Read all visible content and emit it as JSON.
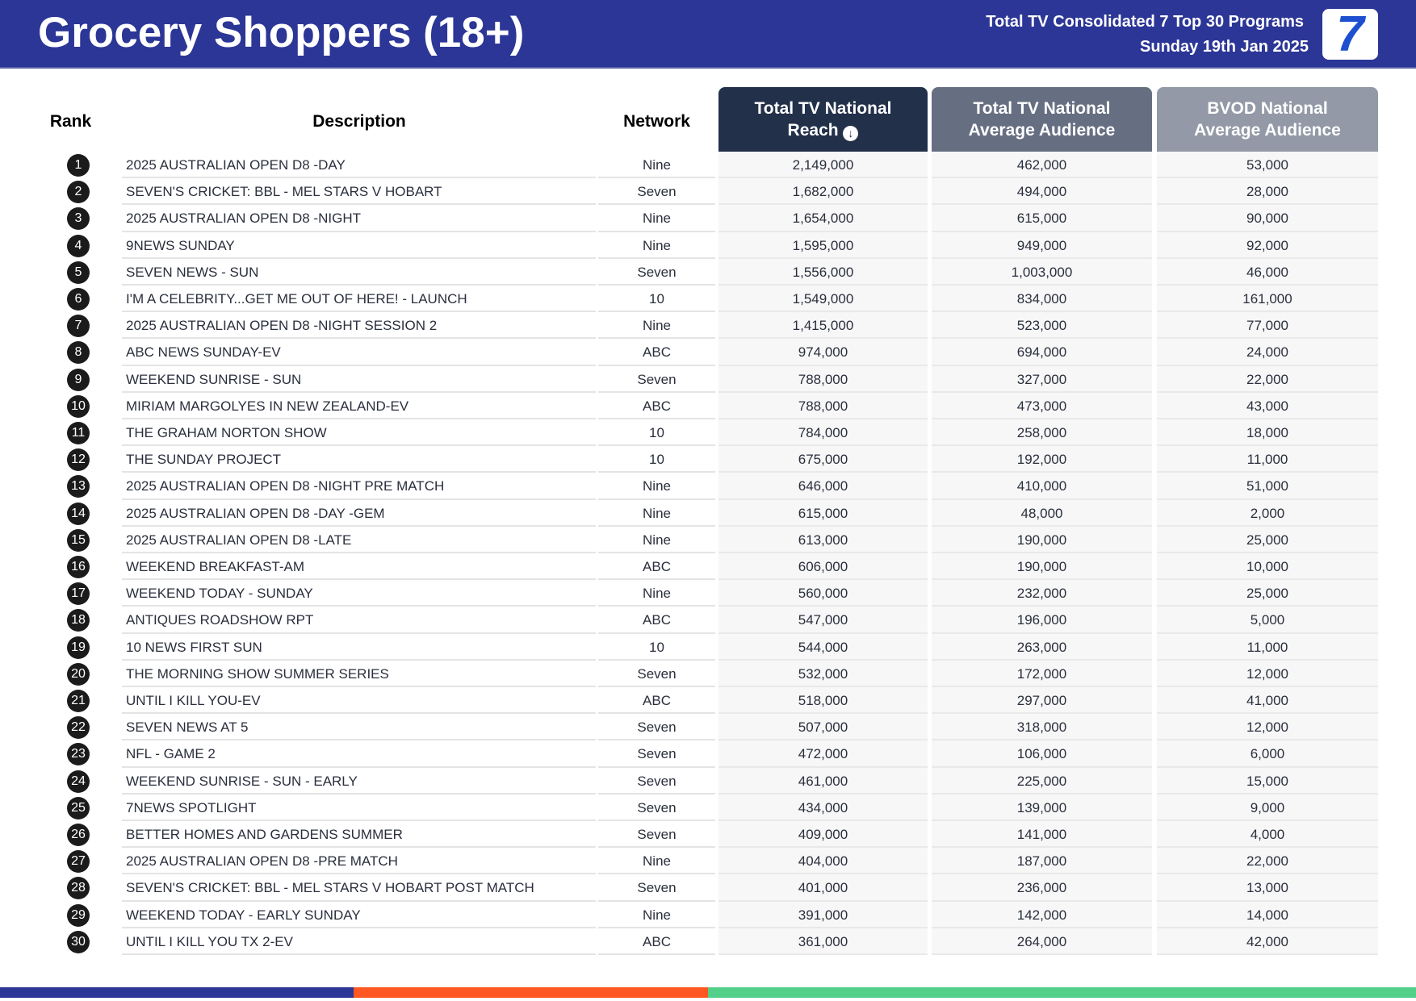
{
  "header": {
    "title": "Grocery Shoppers (18+)",
    "subtitle": "Total TV Consolidated 7 Top 30 Programs",
    "date": "Sunday 19th Jan 2025",
    "logo": "7"
  },
  "columns": {
    "rank": "Rank",
    "description": "Description",
    "network": "Network",
    "reach_l1": "Total TV National",
    "reach_l2": "Reach",
    "avg_l1": "Total TV National",
    "avg_l2": "Average Audience",
    "bvod_l1": "BVOD National",
    "bvod_l2": "Average Audience",
    "sort_icon": "arrow-down-circle-icon"
  },
  "colors": {
    "header": "#2c3696",
    "col_reach": "#22304a",
    "col_avg": "#666f82",
    "col_bvod": "#9399a6",
    "bar": [
      "#2c3696",
      "#ff5722",
      "#52d08a"
    ]
  },
  "rows": [
    {
      "rank": "1",
      "desc": "2025 AUSTRALIAN OPEN D8 -DAY",
      "net": "Nine",
      "reach": "2,149,000",
      "avg": "462,000",
      "bvod": "53,000"
    },
    {
      "rank": "2",
      "desc": "SEVEN'S CRICKET: BBL - MEL STARS V HOBART",
      "net": "Seven",
      "reach": "1,682,000",
      "avg": "494,000",
      "bvod": "28,000"
    },
    {
      "rank": "3",
      "desc": "2025 AUSTRALIAN OPEN D8 -NIGHT",
      "net": "Nine",
      "reach": "1,654,000",
      "avg": "615,000",
      "bvod": "90,000"
    },
    {
      "rank": "4",
      "desc": "9NEWS SUNDAY",
      "net": "Nine",
      "reach": "1,595,000",
      "avg": "949,000",
      "bvod": "92,000"
    },
    {
      "rank": "5",
      "desc": "SEVEN NEWS - SUN",
      "net": "Seven",
      "reach": "1,556,000",
      "avg": "1,003,000",
      "bvod": "46,000"
    },
    {
      "rank": "6",
      "desc": "I'M A CELEBRITY...GET ME OUT OF HERE! - LAUNCH",
      "net": "10",
      "reach": "1,549,000",
      "avg": "834,000",
      "bvod": "161,000"
    },
    {
      "rank": "7",
      "desc": "2025 AUSTRALIAN OPEN D8 -NIGHT SESSION 2",
      "net": "Nine",
      "reach": "1,415,000",
      "avg": "523,000",
      "bvod": "77,000"
    },
    {
      "rank": "8",
      "desc": "ABC NEWS SUNDAY-EV",
      "net": "ABC",
      "reach": "974,000",
      "avg": "694,000",
      "bvod": "24,000"
    },
    {
      "rank": "9",
      "desc": "WEEKEND SUNRISE - SUN",
      "net": "Seven",
      "reach": "788,000",
      "avg": "327,000",
      "bvod": "22,000"
    },
    {
      "rank": "10",
      "desc": "MIRIAM MARGOLYES IN NEW ZEALAND-EV",
      "net": "ABC",
      "reach": "788,000",
      "avg": "473,000",
      "bvod": "43,000"
    },
    {
      "rank": "11",
      "desc": "THE GRAHAM NORTON SHOW",
      "net": "10",
      "reach": "784,000",
      "avg": "258,000",
      "bvod": "18,000"
    },
    {
      "rank": "12",
      "desc": "THE SUNDAY PROJECT",
      "net": "10",
      "reach": "675,000",
      "avg": "192,000",
      "bvod": "11,000"
    },
    {
      "rank": "13",
      "desc": "2025 AUSTRALIAN OPEN D8 -NIGHT PRE MATCH",
      "net": "Nine",
      "reach": "646,000",
      "avg": "410,000",
      "bvod": "51,000"
    },
    {
      "rank": "14",
      "desc": "2025 AUSTRALIAN OPEN D8 -DAY -GEM",
      "net": "Nine",
      "reach": "615,000",
      "avg": "48,000",
      "bvod": "2,000"
    },
    {
      "rank": "15",
      "desc": "2025 AUSTRALIAN OPEN D8 -LATE",
      "net": "Nine",
      "reach": "613,000",
      "avg": "190,000",
      "bvod": "25,000"
    },
    {
      "rank": "16",
      "desc": "WEEKEND BREAKFAST-AM",
      "net": "ABC",
      "reach": "606,000",
      "avg": "190,000",
      "bvod": "10,000"
    },
    {
      "rank": "17",
      "desc": "WEEKEND TODAY - SUNDAY",
      "net": "Nine",
      "reach": "560,000",
      "avg": "232,000",
      "bvod": "25,000"
    },
    {
      "rank": "18",
      "desc": "ANTIQUES ROADSHOW RPT",
      "net": "ABC",
      "reach": "547,000",
      "avg": "196,000",
      "bvod": "5,000"
    },
    {
      "rank": "19",
      "desc": "10 NEWS FIRST SUN",
      "net": "10",
      "reach": "544,000",
      "avg": "263,000",
      "bvod": "11,000"
    },
    {
      "rank": "20",
      "desc": "THE MORNING SHOW SUMMER SERIES",
      "net": "Seven",
      "reach": "532,000",
      "avg": "172,000",
      "bvod": "12,000"
    },
    {
      "rank": "21",
      "desc": "UNTIL I KILL YOU-EV",
      "net": "ABC",
      "reach": "518,000",
      "avg": "297,000",
      "bvod": "41,000"
    },
    {
      "rank": "22",
      "desc": "SEVEN NEWS AT 5",
      "net": "Seven",
      "reach": "507,000",
      "avg": "318,000",
      "bvod": "12,000"
    },
    {
      "rank": "23",
      "desc": "NFL - GAME 2",
      "net": "Seven",
      "reach": "472,000",
      "avg": "106,000",
      "bvod": "6,000"
    },
    {
      "rank": "24",
      "desc": "WEEKEND SUNRISE - SUN - EARLY",
      "net": "Seven",
      "reach": "461,000",
      "avg": "225,000",
      "bvod": "15,000"
    },
    {
      "rank": "25",
      "desc": "7NEWS SPOTLIGHT",
      "net": "Seven",
      "reach": "434,000",
      "avg": "139,000",
      "bvod": "9,000"
    },
    {
      "rank": "26",
      "desc": "BETTER HOMES AND GARDENS SUMMER",
      "net": "Seven",
      "reach": "409,000",
      "avg": "141,000",
      "bvod": "4,000"
    },
    {
      "rank": "27",
      "desc": "2025 AUSTRALIAN OPEN D8 -PRE MATCH",
      "net": "Nine",
      "reach": "404,000",
      "avg": "187,000",
      "bvod": "22,000"
    },
    {
      "rank": "28",
      "desc": "SEVEN'S CRICKET: BBL - MEL STARS V HOBART POST MATCH",
      "net": "Seven",
      "reach": "401,000",
      "avg": "236,000",
      "bvod": "13,000"
    },
    {
      "rank": "29",
      "desc": "WEEKEND TODAY - EARLY SUNDAY",
      "net": "Nine",
      "reach": "391,000",
      "avg": "142,000",
      "bvod": "14,000"
    },
    {
      "rank": "30",
      "desc": "UNTIL I KILL YOU TX 2-EV",
      "net": "ABC",
      "reach": "361,000",
      "avg": "264,000",
      "bvod": "42,000"
    }
  ]
}
